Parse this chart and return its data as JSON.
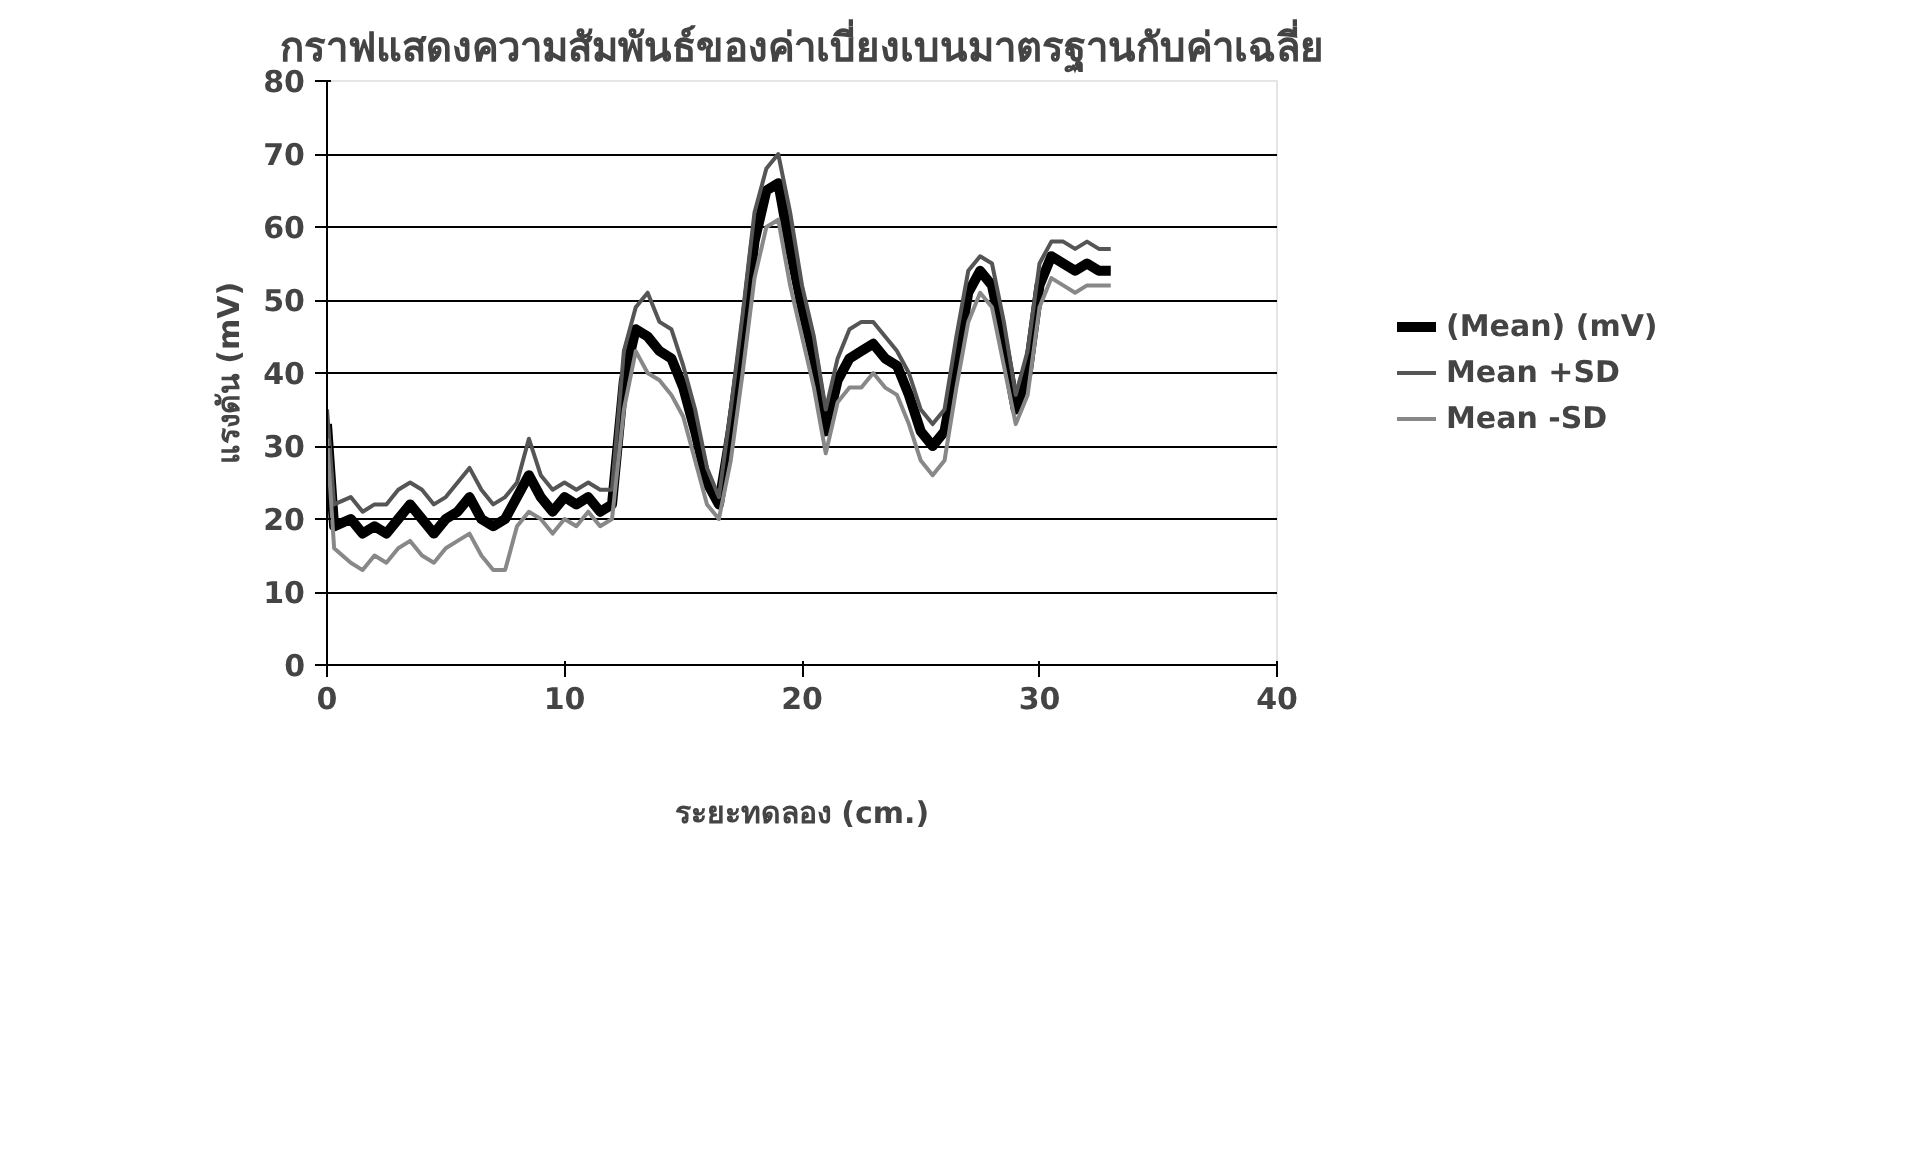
{
  "chart_data": {
    "type": "line",
    "title": "กราฟแสดงความสัมพันธ์ของค่าเบี่ยงเบนมาตรฐานกับค่าเฉลี่ย",
    "xlabel": "ระยะทดลอง (cm.)",
    "ylabel": "แรงดัน (mV)",
    "x": [
      0,
      0.3,
      1,
      1.5,
      2,
      2.5,
      3,
      3.5,
      4,
      4.5,
      5,
      5.5,
      6,
      6.5,
      7,
      7.5,
      8,
      8.5,
      9,
      9.5,
      10,
      10.5,
      11,
      11.5,
      12,
      12.5,
      13,
      13.5,
      14,
      14.5,
      15,
      15.5,
      16,
      16.5,
      17,
      17.5,
      18,
      18.5,
      19,
      19.5,
      20,
      20.5,
      21,
      21.5,
      22,
      22.5,
      23,
      23.5,
      24,
      24.5,
      25,
      25.5,
      26,
      26.5,
      27,
      27.5,
      28,
      28.5,
      29,
      29.5,
      30,
      30.5,
      31,
      31.5,
      32,
      32.5,
      33
    ],
    "series": [
      {
        "name": "(Mean) (mV)",
        "color": "#000000",
        "values": [
          33,
          19,
          20,
          18,
          19,
          18,
          20,
          22,
          20,
          18,
          20,
          21,
          23,
          20,
          19,
          20,
          23,
          26,
          23,
          21,
          23,
          22,
          23,
          21,
          22,
          39,
          46,
          45,
          43,
          42,
          38,
          32,
          25,
          22,
          32,
          44,
          58,
          65,
          66,
          57,
          49,
          42,
          32,
          39,
          42,
          43,
          44,
          42,
          41,
          37,
          32,
          30,
          32,
          41,
          51,
          54,
          52,
          44,
          35,
          40,
          52,
          56,
          55,
          54,
          55,
          54,
          54
        ]
      },
      {
        "name": "Mean +SD",
        "color": "#555555",
        "values": [
          35,
          22,
          23,
          21,
          22,
          22,
          24,
          25,
          24,
          22,
          23,
          25,
          27,
          24,
          22,
          23,
          25,
          31,
          26,
          24,
          25,
          24,
          25,
          24,
          24,
          43,
          49,
          51,
          47,
          46,
          41,
          35,
          27,
          23,
          35,
          48,
          62,
          68,
          70,
          62,
          52,
          45,
          35,
          42,
          46,
          47,
          47,
          45,
          43,
          40,
          35,
          33,
          35,
          45,
          54,
          56,
          55,
          47,
          37,
          43,
          55,
          58,
          58,
          57,
          58,
          57,
          57
        ]
      },
      {
        "name": "Mean -SD",
        "color": "#888888",
        "values": [
          31,
          16,
          14,
          13,
          15,
          14,
          16,
          17,
          15,
          14,
          16,
          17,
          18,
          15,
          13,
          13,
          19,
          21,
          20,
          18,
          20,
          19,
          21,
          19,
          20,
          35,
          43,
          40,
          39,
          37,
          34,
          28,
          22,
          20,
          28,
          40,
          53,
          60,
          61,
          52,
          45,
          38,
          29,
          36,
          38,
          38,
          40,
          38,
          37,
          33,
          28,
          26,
          28,
          38,
          47,
          51,
          49,
          41,
          33,
          37,
          49,
          53,
          52,
          51,
          52,
          52,
          52
        ]
      }
    ],
    "xlim": [
      0,
      40
    ],
    "ylim": [
      0,
      80
    ],
    "xticks": [
      0,
      10,
      20,
      30,
      40
    ],
    "yticks": [
      0,
      10,
      20,
      30,
      40,
      50,
      60,
      70,
      80
    ],
    "grid": "y",
    "legend": "right",
    "marker": "none",
    "line_style": "solid"
  }
}
